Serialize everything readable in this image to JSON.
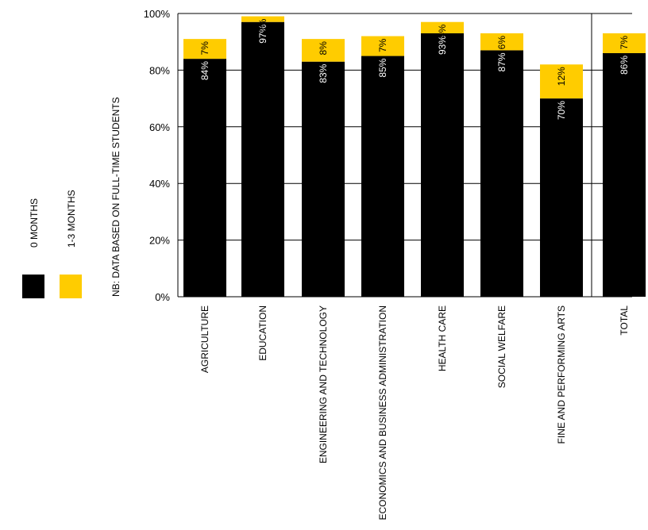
{
  "chart_data": {
    "type": "bar",
    "stacked": true,
    "categories": [
      "AGRICULTURE",
      "EDUCATION",
      "ENGINEERING AND TECHNOLOGY",
      "ECONOMICS AND BUSINESS ADMINISTRATION",
      "HEALTH CARE",
      "SOCIAL WELFARE",
      "FINE AND PERFORMING ARTS",
      "TOTAL"
    ],
    "series": [
      {
        "name": "0 MONTHS",
        "color": "#000000",
        "values": [
          84,
          97,
          83,
          85,
          93,
          87,
          70,
          86
        ],
        "labels": [
          "84%",
          "97%",
          "83%",
          "85%",
          "93%",
          "87%",
          "70%",
          "86%"
        ]
      },
      {
        "name": "1-3 MONTHS",
        "color": "#ffcc00",
        "values": [
          7,
          2,
          8,
          7,
          4,
          6,
          12,
          7
        ],
        "labels": [
          "7%",
          "2%",
          "8%",
          "7%",
          "4%",
          "6%",
          "12%",
          "7%"
        ]
      }
    ],
    "ylim": [
      0,
      100
    ],
    "yticks": [
      0,
      20,
      40,
      60,
      80,
      100
    ],
    "ytick_labels": [
      "0%",
      "20%",
      "40%",
      "60%",
      "80%",
      "100%"
    ],
    "grid": true,
    "legend_position": "left",
    "note": "NB: DATA BASED ON FULL-TIME STUDENTS"
  }
}
